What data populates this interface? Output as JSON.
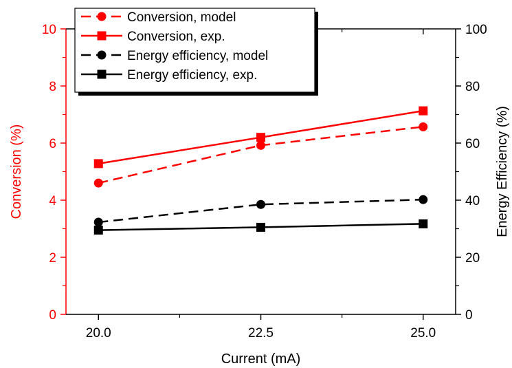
{
  "chart_data": {
    "type": "line",
    "x": [
      20.0,
      22.5,
      25.0
    ],
    "xlabel": "Current (mA)",
    "xlim": [
      19.5,
      25.5
    ],
    "xticks": [
      "20.0",
      "22.5",
      "25.0"
    ],
    "left_axis": {
      "label": "Conversion (%)",
      "ylim": [
        0,
        10
      ],
      "ticks": [
        "0",
        "2",
        "4",
        "6",
        "8",
        "10"
      ],
      "color": "#ff0000"
    },
    "right_axis": {
      "label": "Energy Efficiency (%)",
      "ylim": [
        0,
        100
      ],
      "ticks": [
        "0",
        "20",
        "40",
        "60",
        "80",
        "100"
      ],
      "color": "#000000"
    },
    "series": [
      {
        "name": "Conversion, model",
        "axis": "left",
        "values": [
          4.6,
          5.92,
          6.57
        ],
        "color": "#ff0000",
        "dash": true,
        "marker": "circle"
      },
      {
        "name": "Conversion, exp.",
        "axis": "left",
        "values": [
          5.28,
          6.2,
          7.13
        ],
        "color": "#ff0000",
        "dash": false,
        "marker": "square"
      },
      {
        "name": "Energy efficiency, model",
        "axis": "right",
        "values": [
          32.3,
          38.5,
          40.2
        ],
        "color": "#000000",
        "dash": true,
        "marker": "circle"
      },
      {
        "name": "Energy efficiency, exp.",
        "axis": "right",
        "values": [
          29.5,
          30.5,
          31.7
        ],
        "color": "#000000",
        "dash": false,
        "marker": "square"
      }
    ],
    "legend_position": "top-left",
    "grid": false
  }
}
